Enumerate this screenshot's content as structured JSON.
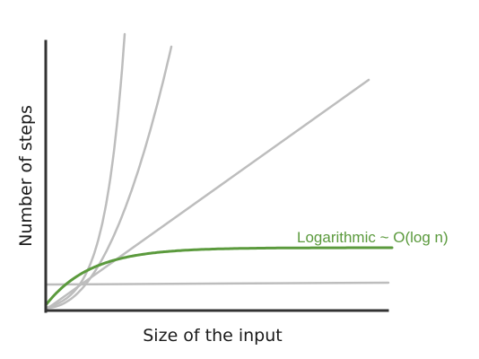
{
  "chart_data": {
    "type": "line",
    "title": "",
    "xlabel": "Size of the input",
    "ylabel": "Number of steps",
    "x_ticks": "none",
    "y_ticks": "none",
    "grid": false,
    "axis_color": "#333333",
    "series": [
      {
        "id": "constant",
        "curve": "constant",
        "color": "#bdbdbd",
        "label": ""
      },
      {
        "id": "linear",
        "curve": "linear",
        "color": "#bdbdbd",
        "label": ""
      },
      {
        "id": "quadratic",
        "curve": "quadratic",
        "color": "#bdbdbd",
        "label": ""
      },
      {
        "id": "exponential",
        "curve": "exponential",
        "color": "#bdbdbd",
        "label": ""
      },
      {
        "id": "logarithmic",
        "curve": "logarithmic",
        "color": "#5b9a3d",
        "label": "Logarithmic ~ O(log n)"
      }
    ]
  }
}
